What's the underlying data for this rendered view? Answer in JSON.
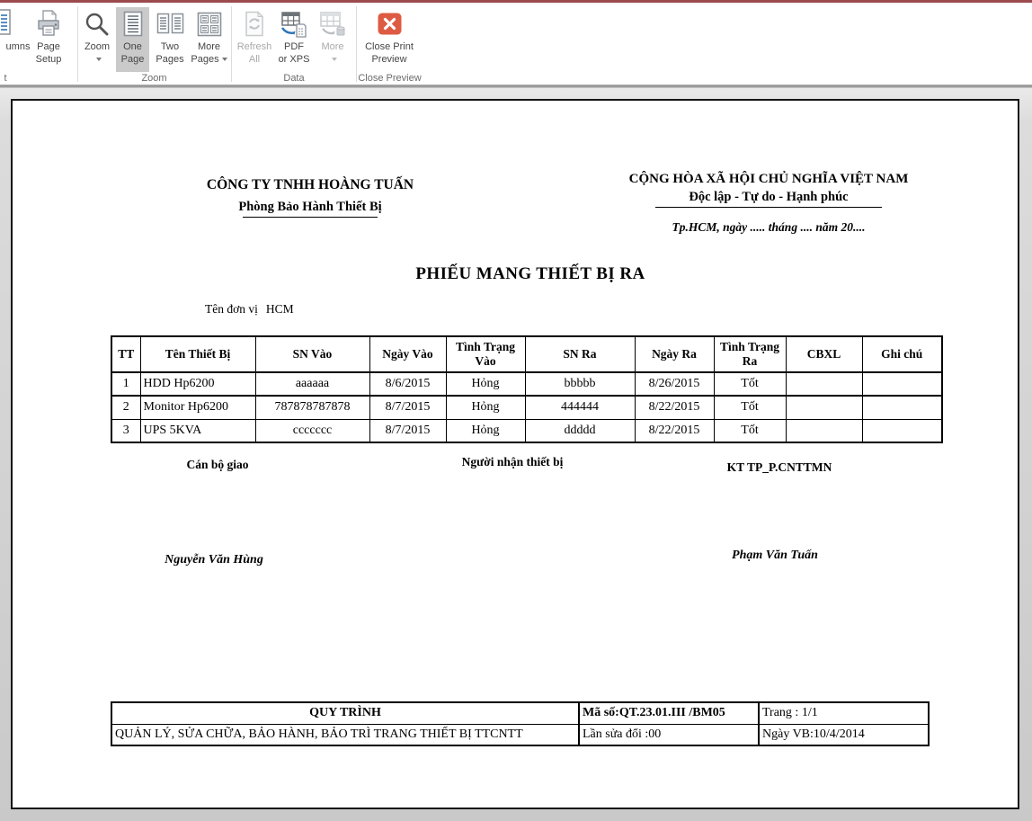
{
  "colors": {
    "accent": "#9c4a4e",
    "close_button": "#de5b43",
    "one_page_highlight": "#cacaca"
  },
  "ribbon": {
    "columns_label": "umns",
    "page_setup": [
      "Page",
      "Setup"
    ],
    "zoom_label": "Zoom",
    "one_page": [
      "One",
      "Page"
    ],
    "two_pages": [
      "Two",
      "Pages"
    ],
    "more_pages": [
      "More",
      "Pages"
    ],
    "refresh_all": [
      "Refresh",
      "All"
    ],
    "pdf_or_xps": [
      "PDF",
      "or XPS"
    ],
    "more_label": "More",
    "close_print_preview": [
      "Close Print",
      "Preview"
    ],
    "groups": {
      "partial": "t",
      "zoom": "Zoom",
      "data": "Data",
      "close": "Close Preview"
    }
  },
  "document": {
    "header_left": {
      "company": "CÔNG TY TNHH HOÀNG TUẤN",
      "department": "Phòng Bảo Hành Thiết Bị"
    },
    "header_right": {
      "national": "CỘNG HÒA XÃ HỘI CHỦ NGHĨA VIỆT NAM",
      "motto": "Độc lập - Tự do - Hạnh phúc",
      "date_line": "Tp.HCM, ngày ..... tháng .... năm 20...."
    },
    "title": "PHIẾU MANG THIẾT BỊ RA",
    "unit_label": "Tên đơn vị",
    "unit_value": "HCM",
    "table": {
      "headers": [
        "TT",
        "Tên Thiết Bị",
        "SN Vào",
        "Ngày Vào",
        "Tình Trạng Vào",
        "SN Ra",
        "Ngày Ra",
        "Tình Trạng Ra",
        "CBXL",
        "Ghi chú"
      ],
      "rows": [
        [
          "1",
          "HDD Hp6200",
          "aaaaaa",
          "8/6/2015",
          "Hỏng",
          "bbbbb",
          "8/26/2015",
          "Tốt",
          "",
          ""
        ],
        [
          "2",
          "Monitor Hp6200",
          "787878787878",
          "8/7/2015",
          "Hỏng",
          "444444",
          "8/22/2015",
          "Tốt",
          "",
          ""
        ],
        [
          "3",
          "UPS 5KVA",
          "ccccccc",
          "8/7/2015",
          "Hỏng",
          "ddddd",
          "8/22/2015",
          "Tốt",
          "",
          ""
        ]
      ]
    },
    "signatures": {
      "giver_title": "Cán bộ giao",
      "receiver_title": "Người nhận thiết bị",
      "approver_title": "KT TP_P.CNTTMN",
      "giver_name": "Nguyễn Văn Hùng",
      "approver_name": "Phạm Văn Tuấn"
    },
    "footer": {
      "quy_trinh": "QUY TRÌNH",
      "process_name": "QUẢN LÝ, SỬA CHỮA, BẢO HÀNH, BẢO TRÌ TRANG THIẾT BỊ TTCNTT",
      "ma_so": "Mã số:QT.23.01.III /BM05",
      "lan_sua_doi": "Lần sửa đổi :00",
      "trang": "Trang : 1/1",
      "ngay_vb": "Ngày VB:10/4/2014"
    }
  }
}
